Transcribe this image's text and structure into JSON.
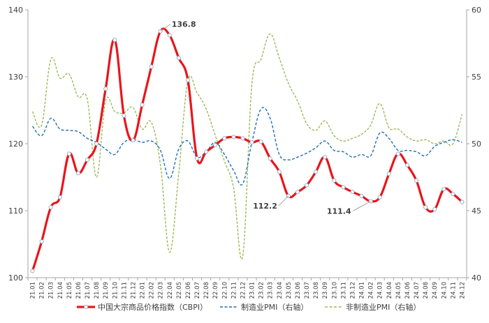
{
  "chart_data": {
    "type": "line",
    "categories": [
      "21.01",
      "21.02",
      "21.03",
      "21.04",
      "21.05",
      "21.06",
      "21.07",
      "21.08",
      "21.09",
      "21.10",
      "21.11",
      "21.12",
      "22.01",
      "22.02",
      "22.03",
      "22.04",
      "22.05",
      "22.06",
      "22.07",
      "22.08",
      "22.09",
      "22.10",
      "22.11",
      "22.12",
      "23.01",
      "23.02",
      "23.03",
      "23.04",
      "23.05",
      "23.06",
      "23.07",
      "23.08",
      "23.09",
      "23.10",
      "23.11",
      "23.12",
      "24.01",
      "24.02",
      "24.03",
      "24.04",
      "24.05",
      "24.06",
      "24.07",
      "24.08",
      "24.09",
      "24.10",
      "24.11",
      "24.12"
    ],
    "left_axis": {
      "min": 100,
      "max": 140,
      "ticks": [
        100,
        110,
        120,
        130,
        140
      ]
    },
    "right_axis": {
      "min": 40,
      "max": 60,
      "ticks": [
        40,
        45,
        50,
        55,
        60
      ]
    },
    "grid": false,
    "legend_position": "bottom",
    "series": [
      {
        "name": "中国大宗商品价格指数（CBPI）",
        "axis": "left",
        "color": "#e8151b",
        "style": "solid-markers",
        "values": [
          101.0,
          105.4,
          110.5,
          112.0,
          118.5,
          115.6,
          117.6,
          120.0,
          128.2,
          135.5,
          124.2,
          120.5,
          125.8,
          131.5,
          136.8,
          136.2,
          132.8,
          129.5,
          117.8,
          118.8,
          119.8,
          120.8,
          121.0,
          120.8,
          120.2,
          120.3,
          117.8,
          115.8,
          112.2,
          112.8,
          113.8,
          115.8,
          118.0,
          114.5,
          113.5,
          112.8,
          112.2,
          111.4,
          112.0,
          115.5,
          118.5,
          116.8,
          114.5,
          110.5,
          110.2,
          113.2,
          112.5,
          111.3
        ]
      },
      {
        "name": "制造业PMI（右轴）",
        "axis": "right",
        "color": "#1f6fb5",
        "style": "dashed",
        "values": [
          51.3,
          50.6,
          51.9,
          51.1,
          51.0,
          50.9,
          50.4,
          50.1,
          49.6,
          49.2,
          50.1,
          50.3,
          50.1,
          50.2,
          49.5,
          47.4,
          49.6,
          50.2,
          49.0,
          49.4,
          50.1,
          49.2,
          48.0,
          47.0,
          50.1,
          52.6,
          51.9,
          49.2,
          48.8,
          49.0,
          49.3,
          49.7,
          50.2,
          49.5,
          49.4,
          49.0,
          49.2,
          49.1,
          50.8,
          50.4,
          49.5,
          49.5,
          49.4,
          49.1,
          49.8,
          50.1,
          50.3,
          50.1
        ]
      },
      {
        "name": "非制造业PMI（右轴）",
        "axis": "right",
        "color": "#9bbb59",
        "style": "dashed",
        "values": [
          52.4,
          51.4,
          56.3,
          54.9,
          55.2,
          53.5,
          53.3,
          47.5,
          53.2,
          52.4,
          52.3,
          52.7,
          51.1,
          51.6,
          48.4,
          41.9,
          47.8,
          54.7,
          53.8,
          52.6,
          50.6,
          48.7,
          46.7,
          41.6,
          54.4,
          56.3,
          58.2,
          56.4,
          54.5,
          53.2,
          51.5,
          51.0,
          51.7,
          50.6,
          50.2,
          50.4,
          50.7,
          51.4,
          53.0,
          51.2,
          51.1,
          50.5,
          50.2,
          50.3,
          50.0,
          50.2,
          50.0,
          52.2
        ]
      }
    ],
    "annotations": [
      {
        "label": "136.8",
        "series": 0,
        "index": 14
      },
      {
        "label": "112.2",
        "series": 0,
        "index": 28
      },
      {
        "label": "111.4",
        "series": 0,
        "index": 37
      }
    ]
  }
}
